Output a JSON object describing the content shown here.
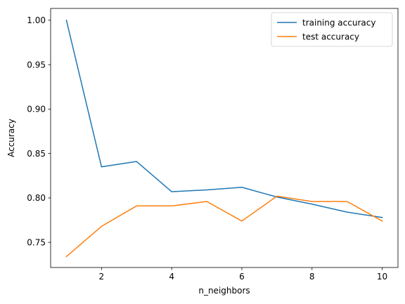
{
  "chart_data": {
    "type": "line",
    "title": "",
    "xlabel": "n_neighbors",
    "ylabel": "Accuracy",
    "x": [
      1,
      2,
      3,
      4,
      5,
      6,
      7,
      8,
      9,
      10
    ],
    "xlim": [
      0.55,
      10.45
    ],
    "ylim": [
      0.7217,
      1.0133
    ],
    "xticks": [
      2,
      4,
      6,
      8,
      10
    ],
    "xtick_labels": [
      "2",
      "4",
      "6",
      "8",
      "10"
    ],
    "yticks": [
      0.75,
      0.8,
      0.85,
      0.9,
      0.95,
      1.0
    ],
    "ytick_labels": [
      "0.75",
      "0.80",
      "0.85",
      "0.90",
      "0.95",
      "1.00"
    ],
    "grid": false,
    "legend_position": "top-right",
    "series": [
      {
        "name": "training accuracy",
        "color": "#1f77b4",
        "values": [
          1.0,
          0.835,
          0.841,
          0.807,
          0.809,
          0.812,
          0.801,
          0.793,
          0.784,
          0.778
        ]
      },
      {
        "name": "test accuracy",
        "color": "#ff7f0e",
        "values": [
          0.734,
          0.768,
          0.791,
          0.791,
          0.796,
          0.774,
          0.802,
          0.796,
          0.796,
          0.774
        ]
      }
    ]
  }
}
